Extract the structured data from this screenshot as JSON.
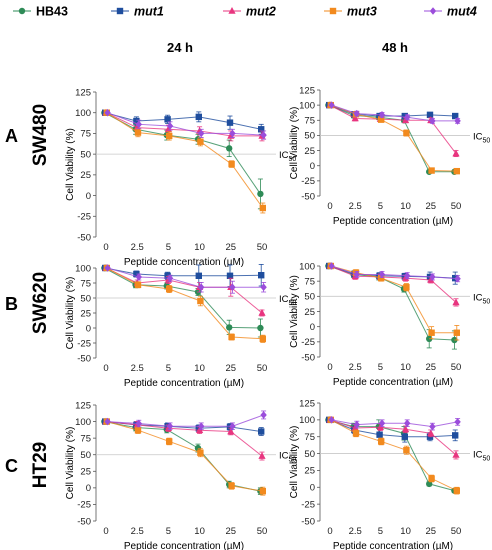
{
  "legend": [
    {
      "name": "HB43",
      "color": "#2e8b57",
      "marker": "circle"
    },
    {
      "name": "mut1",
      "color": "#1f4e9e",
      "marker": "square"
    },
    {
      "name": "mut2",
      "color": "#e8357f",
      "marker": "triangle"
    },
    {
      "name": "mut3",
      "color": "#f28a1e",
      "marker": "square"
    },
    {
      "name": "mut4",
      "color": "#9b4ddb",
      "marker": "diamond"
    }
  ],
  "columns": [
    "24 h",
    "48 h"
  ],
  "rows": [
    {
      "letter": "A",
      "cell_line": "SW480"
    },
    {
      "letter": "B",
      "cell_line": "SW620"
    },
    {
      "letter": "C",
      "cell_line": "HT29"
    }
  ],
  "chart_data": [
    {
      "type": "line",
      "row": "SW480",
      "column": "24 h",
      "xlabel": "Peptide concentration (µM)",
      "ylabel": "Cell Viability (%)",
      "categories": [
        "0",
        "2.5",
        "5",
        "10",
        "25",
        "50"
      ],
      "ylim": [
        -50,
        125
      ],
      "yticks": [
        -50,
        -25,
        0,
        25,
        50,
        75,
        100,
        125
      ],
      "reference_line": {
        "y": 50,
        "label": "IC",
        "sub": "50"
      },
      "series": [
        {
          "name": "HB43",
          "values": [
            100,
            80,
            73,
            68,
            57,
            2
          ],
          "err": [
            1,
            6,
            6,
            6,
            10,
            18
          ]
        },
        {
          "name": "mut1",
          "values": [
            100,
            90,
            92,
            95,
            88,
            80
          ],
          "err": [
            1,
            5,
            5,
            6,
            8,
            6
          ]
        },
        {
          "name": "mut2",
          "values": [
            100,
            82,
            80,
            78,
            72,
            72
          ],
          "err": [
            1,
            5,
            5,
            5,
            6,
            6
          ]
        },
        {
          "name": "mut3",
          "values": [
            100,
            76,
            72,
            65,
            38,
            -15
          ],
          "err": [
            1,
            5,
            5,
            5,
            4,
            6
          ]
        },
        {
          "name": "mut4",
          "values": [
            100,
            86,
            84,
            75,
            75,
            73
          ],
          "err": [
            1,
            5,
            5,
            5,
            5,
            5
          ]
        }
      ]
    },
    {
      "type": "line",
      "row": "SW480",
      "column": "48 h",
      "xlabel": "Peptide concentration (µM)",
      "ylabel": "Cell Viability (%)",
      "categories": [
        "0",
        "2.5",
        "5",
        "10",
        "25",
        "50"
      ],
      "ylim": [
        -50,
        125
      ],
      "yticks": [
        -50,
        -25,
        0,
        25,
        50,
        75,
        100,
        125
      ],
      "reference_line": {
        "y": 50,
        "label": "IC",
        "sub": "50"
      },
      "series": [
        {
          "name": "HB43",
          "values": [
            100,
            83,
            80,
            75,
            -10,
            -10
          ],
          "err": [
            1,
            4,
            4,
            4,
            2,
            2
          ]
        },
        {
          "name": "mut1",
          "values": [
            100,
            85,
            82,
            82,
            84,
            82
          ],
          "err": [
            1,
            4,
            4,
            4,
            4,
            4
          ]
        },
        {
          "name": "mut2",
          "values": [
            100,
            78,
            77,
            75,
            75,
            20
          ],
          "err": [
            1,
            4,
            4,
            4,
            4,
            5
          ]
        },
        {
          "name": "mut3",
          "values": [
            100,
            85,
            76,
            54,
            -8,
            -9
          ],
          "err": [
            1,
            4,
            4,
            5,
            2,
            2
          ]
        },
        {
          "name": "mut4",
          "values": [
            100,
            86,
            84,
            80,
            74,
            74
          ],
          "err": [
            1,
            4,
            4,
            4,
            4,
            4
          ]
        }
      ]
    },
    {
      "type": "line",
      "row": "SW620",
      "column": "24 h",
      "xlabel": "Peptide concentration (µM)",
      "ylabel": "Cell Viability (%)",
      "categories": [
        "0",
        "2.5",
        "5",
        "10",
        "25",
        "50"
      ],
      "ylim": [
        -50,
        100
      ],
      "yticks": [
        -50,
        -25,
        0,
        25,
        50,
        75,
        100
      ],
      "reference_line": {
        "y": 50,
        "label": "IC",
        "sub": "50"
      },
      "series": [
        {
          "name": "HB43",
          "values": [
            100,
            72,
            70,
            60,
            1,
            0
          ],
          "err": [
            1,
            5,
            5,
            6,
            12,
            15
          ]
        },
        {
          "name": "mut1",
          "values": [
            100,
            90,
            87,
            87,
            87,
            88
          ],
          "err": [
            1,
            5,
            6,
            18,
            18,
            18
          ]
        },
        {
          "name": "mut2",
          "values": [
            100,
            75,
            80,
            68,
            68,
            25
          ],
          "err": [
            1,
            5,
            6,
            8,
            15,
            5
          ]
        },
        {
          "name": "mut3",
          "values": [
            100,
            72,
            65,
            45,
            -15,
            -18
          ],
          "err": [
            1,
            5,
            6,
            8,
            5,
            6
          ]
        },
        {
          "name": "mut4",
          "values": [
            100,
            85,
            83,
            68,
            68,
            68
          ],
          "err": [
            1,
            5,
            5,
            8,
            10,
            8
          ]
        }
      ]
    },
    {
      "type": "line",
      "row": "SW620",
      "column": "48 h",
      "xlabel": "Peptide concentration (µM)",
      "ylabel": "Cell Viability (%)",
      "categories": [
        "0",
        "2.5",
        "5",
        "10",
        "25",
        "50"
      ],
      "ylim": [
        -50,
        100
      ],
      "yticks": [
        -50,
        -25,
        0,
        25,
        50,
        75,
        100
      ],
      "reference_line": {
        "y": 50,
        "label": "IC",
        "sub": "50"
      },
      "series": [
        {
          "name": "HB43",
          "values": [
            100,
            86,
            82,
            62,
            -20,
            -22
          ],
          "err": [
            1,
            5,
            5,
            5,
            15,
            15
          ]
        },
        {
          "name": "mut1",
          "values": [
            100,
            87,
            84,
            83,
            82,
            80
          ],
          "err": [
            1,
            5,
            5,
            5,
            8,
            10
          ]
        },
        {
          "name": "mut2",
          "values": [
            100,
            83,
            82,
            80,
            77,
            40
          ],
          "err": [
            1,
            5,
            5,
            5,
            5,
            6
          ]
        },
        {
          "name": "mut3",
          "values": [
            100,
            89,
            80,
            65,
            -10,
            -10
          ],
          "err": [
            1,
            5,
            5,
            6,
            10,
            12
          ]
        },
        {
          "name": "mut4",
          "values": [
            100,
            86,
            86,
            84,
            82,
            79
          ],
          "err": [
            1,
            5,
            5,
            5,
            5,
            5
          ]
        }
      ]
    },
    {
      "type": "line",
      "row": "HT29",
      "column": "24 h",
      "xlabel": "Peptide concentration (µM)",
      "ylabel": "Cell Viability (%)",
      "categories": [
        "0",
        "2.5",
        "5",
        "10",
        "25",
        "50"
      ],
      "ylim": [
        -50,
        125
      ],
      "yticks": [
        -50,
        -25,
        0,
        25,
        50,
        75,
        100,
        125
      ],
      "reference_line": {
        "y": 50,
        "label": "IC",
        "sub": "50"
      },
      "series": [
        {
          "name": "HB43",
          "values": [
            100,
            91,
            88,
            60,
            5,
            -5
          ],
          "err": [
            1,
            5,
            5,
            6,
            5,
            5
          ]
        },
        {
          "name": "mut1",
          "values": [
            100,
            95,
            93,
            90,
            92,
            85
          ],
          "err": [
            1,
            5,
            5,
            5,
            5,
            6
          ]
        },
        {
          "name": "mut2",
          "values": [
            100,
            95,
            90,
            87,
            85,
            48
          ],
          "err": [
            1,
            5,
            5,
            5,
            5,
            6
          ]
        },
        {
          "name": "mut3",
          "values": [
            100,
            87,
            70,
            53,
            3,
            -5
          ],
          "err": [
            1,
            5,
            5,
            6,
            5,
            6
          ]
        },
        {
          "name": "mut4",
          "values": [
            100,
            97,
            93,
            93,
            93,
            110
          ],
          "err": [
            1,
            5,
            5,
            5,
            5,
            6
          ]
        }
      ]
    },
    {
      "type": "line",
      "row": "HT29",
      "column": "48 h",
      "xlabel": "Peptide concentration (µM)",
      "ylabel": "Cell Viability (%)",
      "categories": [
        "0",
        "2.5",
        "5",
        "10",
        "25",
        "50"
      ],
      "ylim": [
        -50,
        125
      ],
      "yticks": [
        -50,
        -25,
        0,
        25,
        50,
        75,
        100,
        125
      ],
      "reference_line": {
        "y": 50,
        "label": "IC",
        "sub": "50"
      },
      "series": [
        {
          "name": "HB43",
          "values": [
            100,
            90,
            90,
            80,
            5,
            -5
          ],
          "err": [
            1,
            5,
            10,
            10,
            3,
            3
          ]
        },
        {
          "name": "mut1",
          "values": [
            100,
            85,
            78,
            75,
            75,
            77
          ],
          "err": [
            1,
            5,
            8,
            8,
            6,
            8
          ]
        },
        {
          "name": "mut2",
          "values": [
            100,
            88,
            89,
            86,
            80,
            48
          ],
          "err": [
            1,
            5,
            5,
            5,
            5,
            6
          ]
        },
        {
          "name": "mut3",
          "values": [
            100,
            80,
            68,
            55,
            13,
            -5
          ],
          "err": [
            1,
            5,
            5,
            6,
            5,
            5
          ]
        },
        {
          "name": "mut4",
          "values": [
            100,
            93,
            95,
            95,
            90,
            97
          ],
          "err": [
            1,
            5,
            5,
            5,
            5,
            5
          ]
        }
      ]
    }
  ]
}
